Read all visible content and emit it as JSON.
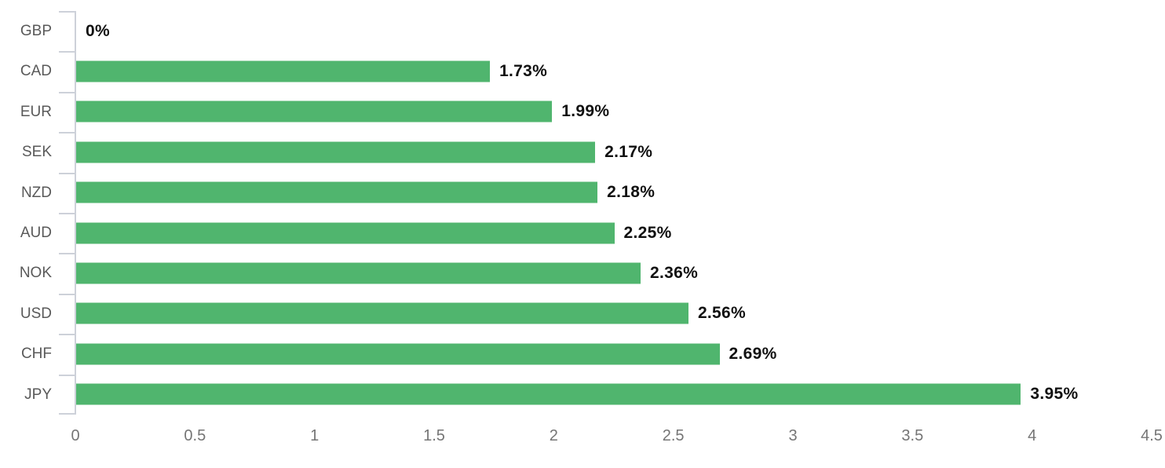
{
  "chart_data": {
    "type": "bar",
    "orientation": "horizontal",
    "title": "",
    "xlabel": "",
    "ylabel": "",
    "categories": [
      "GBP",
      "CAD",
      "EUR",
      "SEK",
      "NZD",
      "AUD",
      "NOK",
      "USD",
      "CHF",
      "JPY"
    ],
    "values": [
      0,
      1.73,
      1.99,
      2.17,
      2.18,
      2.25,
      2.36,
      2.56,
      2.69,
      3.95
    ],
    "value_labels": [
      "0%",
      "1.73%",
      "1.99%",
      "2.17%",
      "2.18%",
      "2.25%",
      "2.36%",
      "2.56%",
      "2.69%",
      "3.95%"
    ],
    "xlim": [
      0,
      4.5
    ],
    "x_ticks": [
      0,
      0.5,
      1,
      1.5,
      2,
      2.5,
      3,
      3.5,
      4,
      4.5
    ],
    "x_tick_labels": [
      "0",
      "0.5",
      "1",
      "1.5",
      "2",
      "2.5",
      "3",
      "3.5",
      "4",
      "4.5"
    ],
    "grid": false,
    "legend": false,
    "colors": {
      "bar": "#50b56e",
      "axis_line": "#cdd1d9",
      "category_label": "#595959",
      "x_tick_label": "#757575",
      "value_label": "#111111"
    }
  }
}
